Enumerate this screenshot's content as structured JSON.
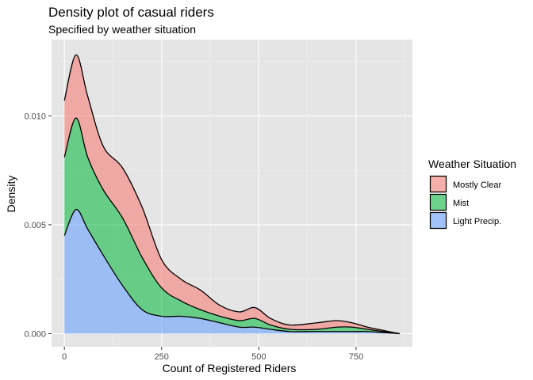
{
  "chart_data": {
    "type": "area",
    "stacked": true,
    "title": "Density plot of casual riders",
    "subtitle": "Specified by weather situation",
    "xlabel": "Count of Registered Riders",
    "ylabel": "Density",
    "xlim": [
      -33,
      895
    ],
    "ylim": [
      -0.0006,
      0.0135
    ],
    "x_ticks": [
      0,
      250,
      500,
      750
    ],
    "x_tick_labels": [
      "0",
      "250",
      "500",
      "750"
    ],
    "y_ticks": [
      0.0,
      0.005,
      0.01
    ],
    "y_tick_labels": [
      "0.000",
      "0.005",
      "0.010"
    ],
    "grid": true,
    "legend": {
      "title": "Weather Situation",
      "position": "right"
    },
    "background": "#e5e5e5",
    "x": [
      0,
      30,
      60,
      100,
      150,
      200,
      250,
      300,
      350,
      400,
      450,
      490,
      530,
      580,
      650,
      700,
      740,
      780,
      820,
      862
    ],
    "series": [
      {
        "name": "Light Precip.",
        "color": "#619CFF",
        "values": [
          0.0045,
          0.0057,
          0.0048,
          0.0036,
          0.0022,
          0.0011,
          0.0008,
          0.0008,
          0.0007,
          0.0005,
          0.0003,
          0.0003,
          0.0002,
          0.0001,
          0.0001,
          0.0001,
          0.0001,
          0.0001,
          5e-05,
          0.0
        ]
      },
      {
        "name": "Mist",
        "color": "#00BA38",
        "values": [
          0.0036,
          0.0042,
          0.0033,
          0.003,
          0.0031,
          0.0024,
          0.0013,
          0.0007,
          0.0004,
          0.0003,
          0.0003,
          0.0004,
          0.0002,
          0.0001,
          0.0001,
          0.0002,
          0.0002,
          0.0001,
          5e-05,
          0.0
        ]
      },
      {
        "name": "Mostly Clear",
        "color": "#F8766D",
        "values": [
          0.0026,
          0.0029,
          0.0028,
          0.002,
          0.0023,
          0.0023,
          0.0013,
          0.001,
          0.0009,
          0.0005,
          0.0004,
          0.0005,
          0.0003,
          0.0002,
          0.0003,
          0.0003,
          0.0002,
          0.0001,
          5e-05,
          0.0
        ]
      }
    ]
  }
}
